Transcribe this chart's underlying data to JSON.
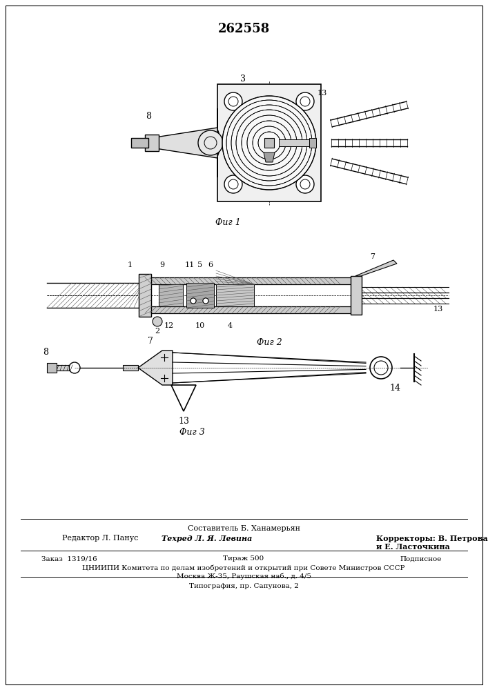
{
  "title_number": "262558",
  "fig1_label": "Фиг 1",
  "fig2_label": "Фиг 2",
  "fig3_label": "Фиг 3",
  "bg_color": "#ffffff",
  "line_color": "#000000",
  "footer_composer": "Составитель Б. Ханамерьян",
  "footer_editor": "Редактор Л. Панус",
  "footer_tehred": "Техред Л. Я. Левина",
  "footer_korr1": "Корректоры: В. Петрова",
  "footer_korr2": "и Е. Ласточкина",
  "footer_zakas": "Заказ  1319/16",
  "footer_tiraz": "Тираж 500",
  "footer_podpisnoe": "Подписное",
  "footer_tsniip": "ЦНИИПИ Комитета по делам изобретений и открытий при Совете Министров СССР",
  "footer_moscow": "Москва Ж-35, Раушская наб., д. 4/5",
  "footer_tipografia": "Типография, пр. Сапунова, 2"
}
